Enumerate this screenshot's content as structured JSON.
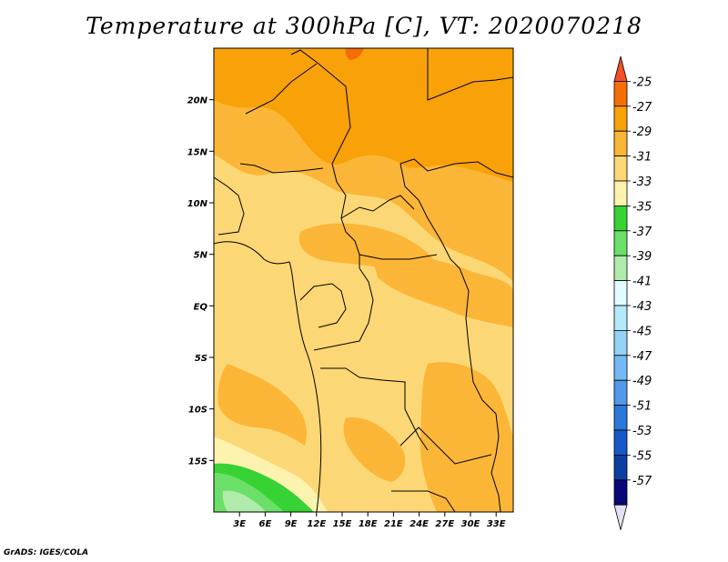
{
  "title": "Temperature at 300hPa [C], VT: 2020070218",
  "footer": "GrADS: IGES/COLA",
  "map": {
    "lon_range": [
      0,
      35
    ],
    "lat_range": [
      -20,
      25
    ],
    "lat_ticks": [
      {
        "value": 20,
        "label": "20N"
      },
      {
        "value": 15,
        "label": "15N"
      },
      {
        "value": 10,
        "label": "10N"
      },
      {
        "value": 5,
        "label": "5N"
      },
      {
        "value": 0,
        "label": "EQ"
      },
      {
        "value": -5,
        "label": "5S"
      },
      {
        "value": -10,
        "label": "10S"
      },
      {
        "value": -15,
        "label": "15S"
      }
    ],
    "lon_ticks": [
      {
        "value": 3,
        "label": "3E"
      },
      {
        "value": 6,
        "label": "6E"
      },
      {
        "value": 9,
        "label": "9E"
      },
      {
        "value": 12,
        "label": "12E"
      },
      {
        "value": 15,
        "label": "15E"
      },
      {
        "value": 18,
        "label": "18E"
      },
      {
        "value": 21,
        "label": "21E"
      },
      {
        "value": 24,
        "label": "24E"
      },
      {
        "value": 27,
        "label": "27E"
      },
      {
        "value": 30,
        "label": "30E"
      },
      {
        "value": 33,
        "label": "33E"
      }
    ]
  },
  "colorbar": {
    "labels": [
      "-25",
      "-27",
      "-29",
      "-31",
      "-33",
      "-35",
      "-37",
      "-39",
      "-41",
      "-43",
      "-45",
      "-47",
      "-49",
      "-51",
      "-53",
      "-55",
      "-57"
    ],
    "colors": [
      "#f0502a",
      "#f56d05",
      "#f9a108",
      "#fbb638",
      "#fcd775",
      "#fdf2ae",
      "#37d234",
      "#6ae068",
      "#b0ebac",
      "#e1fbff",
      "#b4e9f9",
      "#94d1f7",
      "#73b9f5",
      "#4f98ea",
      "#2a78d8",
      "#1459c7",
      "#0b3fa2",
      "#060977",
      "#e1e1f5"
    ]
  }
}
